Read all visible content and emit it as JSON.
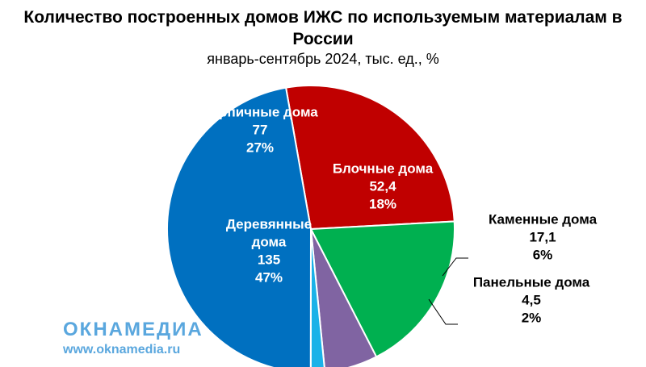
{
  "chart_data": {
    "type": "pie",
    "title": "Количество построенных домов ИЖС по используемым материалам в России",
    "subtitle": "январь-сентябрь 2024, тыс. ед., %",
    "slices": [
      {
        "label": "Кирпичные дома",
        "value": 77,
        "value_text": "77",
        "percent": 27,
        "percent_text": "27%",
        "color": "#c00000",
        "label_color": "#ffffff"
      },
      {
        "label": "Блочные дома",
        "value": 52.4,
        "value_text": "52,4",
        "percent": 18,
        "percent_text": "18%",
        "color": "#00b050",
        "label_color": "#ffffff"
      },
      {
        "label": "Каменные дома",
        "value": 17.1,
        "value_text": "17,1",
        "percent": 6,
        "percent_text": "6%",
        "color": "#8064a2",
        "label_color": "#000000"
      },
      {
        "label": "Панельные дома",
        "value": 4.5,
        "value_text": "4,5",
        "percent": 2,
        "percent_text": "2%",
        "color": "#1ab2e8",
        "label_color": "#000000"
      },
      {
        "label": "Деревянные дома",
        "value": 135,
        "value_text": "135",
        "percent": 47,
        "percent_text": "47%",
        "color": "#0070c0",
        "label_color": "#ffffff"
      }
    ]
  },
  "watermark": {
    "logo": "ОКНАМЕДИА",
    "url": "www.oknamedia.ru",
    "color": "#5aa7de"
  }
}
